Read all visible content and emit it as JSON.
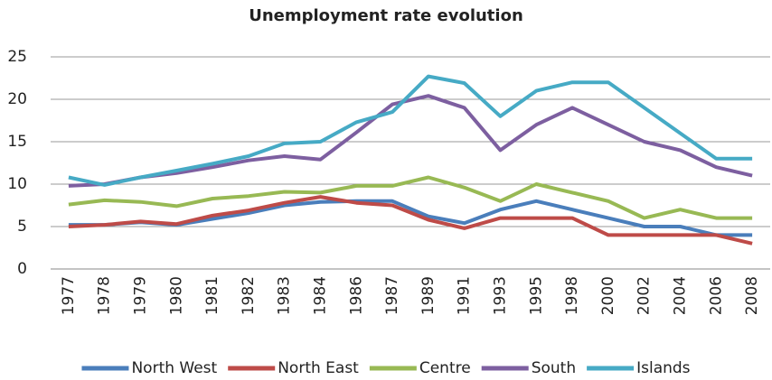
{
  "chart_data": {
    "type": "line",
    "title": "Unemployment rate evolution",
    "categories": [
      "1977",
      "1978",
      "1979",
      "1980",
      "1981",
      "1982",
      "1983",
      "1984",
      "1986",
      "1987",
      "1989",
      "1991",
      "1993",
      "1995",
      "1998",
      "2000",
      "2002",
      "2004",
      "2006",
      "2008"
    ],
    "series": [
      {
        "name": "North West",
        "color": "#4a7ebb",
        "values": [
          5.2,
          5.2,
          5.5,
          5.2,
          5.9,
          6.6,
          7.5,
          7.9,
          8.0,
          8.0,
          6.2,
          5.4,
          7.0,
          8.0,
          7.0,
          6.0,
          5.0,
          5.0,
          4.0,
          4.0
        ]
      },
      {
        "name": "North East",
        "color": "#be4b48",
        "values": [
          5.0,
          5.2,
          5.6,
          5.3,
          6.3,
          6.9,
          7.8,
          8.5,
          7.8,
          7.5,
          5.8,
          4.8,
          6.0,
          6.0,
          6.0,
          4.0,
          4.0,
          4.0,
          4.0,
          3.0
        ]
      },
      {
        "name": "Centre",
        "color": "#98b954",
        "values": [
          7.6,
          8.1,
          7.9,
          7.4,
          8.3,
          8.6,
          9.1,
          9.0,
          9.8,
          9.8,
          10.8,
          9.6,
          8.0,
          10.0,
          9.0,
          8.0,
          6.0,
          7.0,
          6.0,
          6.0
        ]
      },
      {
        "name": "South",
        "color": "#7d5fa0",
        "values": [
          9.8,
          10.0,
          10.8,
          11.3,
          12.0,
          12.8,
          13.3,
          12.9,
          16.1,
          19.4,
          20.4,
          19.0,
          14.0,
          17.0,
          19.0,
          17.0,
          15.0,
          14.0,
          12.0,
          11.0
        ]
      },
      {
        "name": "Islands",
        "color": "#46aac5",
        "values": [
          10.8,
          9.9,
          10.8,
          11.6,
          12.4,
          13.3,
          14.8,
          15.0,
          17.3,
          18.5,
          22.7,
          21.9,
          18.0,
          21.0,
          22.0,
          22.0,
          19.0,
          16.0,
          13.0,
          13.0
        ]
      }
    ],
    "ylim": [
      0,
      25
    ],
    "yticks": [
      0,
      5,
      10,
      15,
      20,
      25
    ],
    "grid": true,
    "legend": "bottom"
  }
}
